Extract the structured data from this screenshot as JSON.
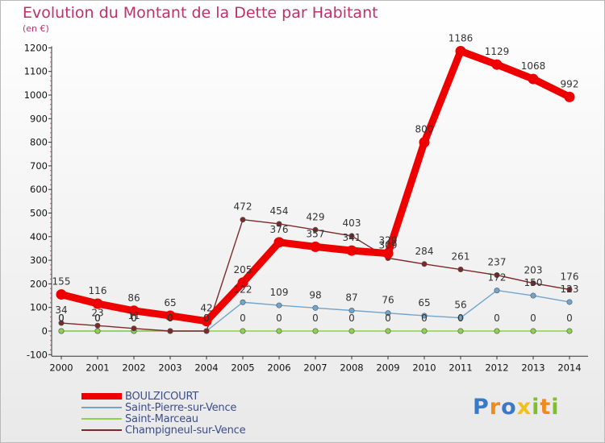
{
  "title": "Evolution du Montant de la Dette par Habitant",
  "unit": "(en €)",
  "logo": {
    "text": "Proxiti",
    "letters": [
      {
        "ch": "P",
        "color": "#3a79c8"
      },
      {
        "ch": "r",
        "color": "#f08a1c"
      },
      {
        "ch": "o",
        "color": "#3a79c8"
      },
      {
        "ch": "x",
        "color": "#f0c01c"
      },
      {
        "ch": "i",
        "color": "#7fbf2a"
      },
      {
        "ch": "t",
        "color": "#f08a1c"
      },
      {
        "ch": "i",
        "color": "#7fbf2a"
      }
    ]
  },
  "chart_data": {
    "type": "line",
    "title": "Evolution du Montant de la Dette par Habitant",
    "ylabel": "(en €)",
    "xlabel": "",
    "x": [
      "2000",
      "2001",
      "2002",
      "2003",
      "2004",
      "2005",
      "2006",
      "2007",
      "2008",
      "2009",
      "2010",
      "2011",
      "2012",
      "2013",
      "2014"
    ],
    "ylim": [
      -100,
      1200
    ],
    "yticks": [
      -100,
      0,
      100,
      200,
      300,
      400,
      500,
      600,
      700,
      800,
      900,
      1000,
      1100,
      1200
    ],
    "grid": false,
    "legend": "bottom-left",
    "series": [
      {
        "name": "BOULZICOURT",
        "color": "#ee0000",
        "values": [
          155,
          116,
          86,
          65,
          42,
          205,
          376,
          357,
          341,
          329,
          800,
          1186,
          1129,
          1068,
          992
        ],
        "labels": [
          "155",
          "116",
          "86",
          "65",
          "42",
          "205",
          "376",
          "357",
          "341",
          "329",
          "800",
          "1186",
          "1129",
          "1068",
          "992"
        ]
      },
      {
        "name": "Saint-Pierre-sur-Vence",
        "color": "#6fa5cf",
        "values": [
          0,
          0,
          0,
          0,
          0,
          122,
          109,
          98,
          87,
          76,
          65,
          56,
          172,
          150,
          123
        ],
        "labels": [
          "0",
          "0",
          "0",
          "0",
          "0",
          "122",
          "109",
          "98",
          "87",
          "76",
          "65",
          "56",
          "172",
          "150",
          "123"
        ]
      },
      {
        "name": "Saint-Marceau",
        "color": "#8fd14f",
        "values": [
          0,
          0,
          0,
          0,
          0,
          0,
          0,
          0,
          0,
          0,
          0,
          0,
          0,
          0,
          0
        ],
        "labels": [
          "0",
          "0",
          "0",
          "0",
          "0",
          "0",
          "0",
          "0",
          "0",
          "0",
          "0",
          "0",
          "0",
          "0",
          "0"
        ]
      },
      {
        "name": "Champigneul-sur-Vence",
        "color": "#7a2a2a",
        "values": [
          34,
          23,
          11,
          0,
          0,
          472,
          454,
          429,
          403,
          309,
          284,
          261,
          237,
          203,
          176
        ],
        "labels": [
          "34",
          "23",
          "11",
          "0",
          "0",
          "472",
          "454",
          "429",
          "403",
          "309",
          "284",
          "261",
          "237",
          "203",
          "176"
        ]
      }
    ]
  }
}
